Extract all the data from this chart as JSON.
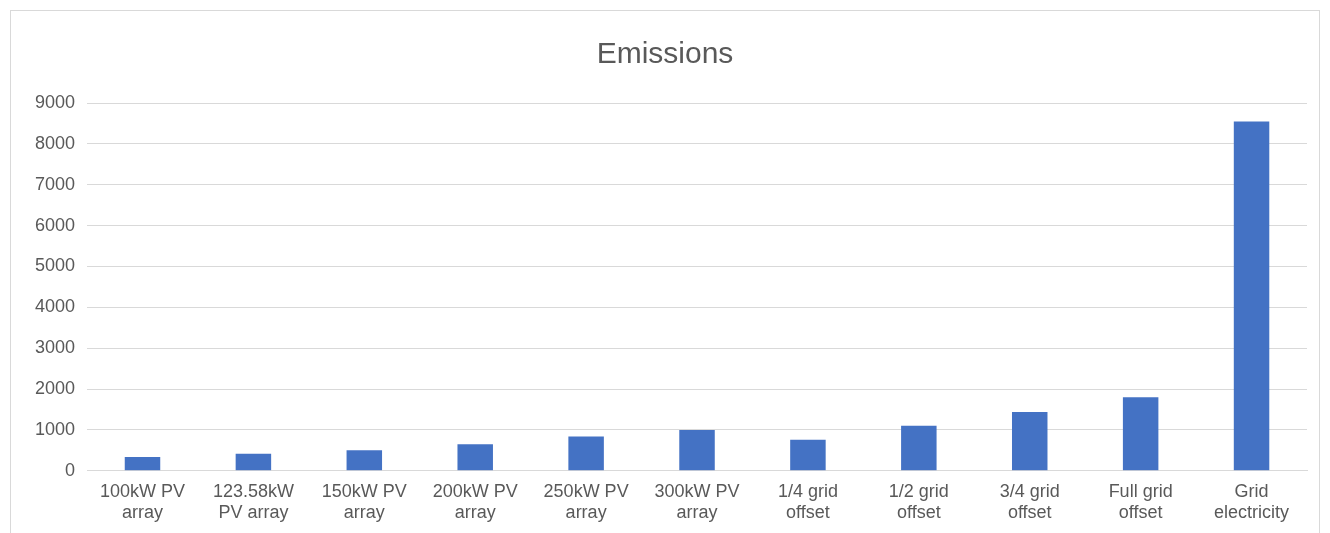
{
  "chart_data": {
    "type": "bar",
    "title": "Emissions",
    "categories": [
      "100kW PV array",
      "123.58kW PV array",
      "150kW PV array",
      "200kW PV array",
      "250kW PV array",
      "300kW PV array",
      "1/4 grid offset",
      "1/2 grid offset",
      "3/4 grid offset",
      "Full grid offset",
      "Grid electricity"
    ],
    "values": [
      340,
      420,
      500,
      650,
      840,
      1000,
      760,
      1100,
      1440,
      1800,
      8550
    ],
    "color": "#4472c4",
    "ylim": [
      0,
      9000
    ],
    "yticks": [
      0,
      1000,
      2000,
      3000,
      4000,
      5000,
      6000,
      7000,
      8000,
      9000
    ],
    "grid": "y",
    "legend": false
  }
}
